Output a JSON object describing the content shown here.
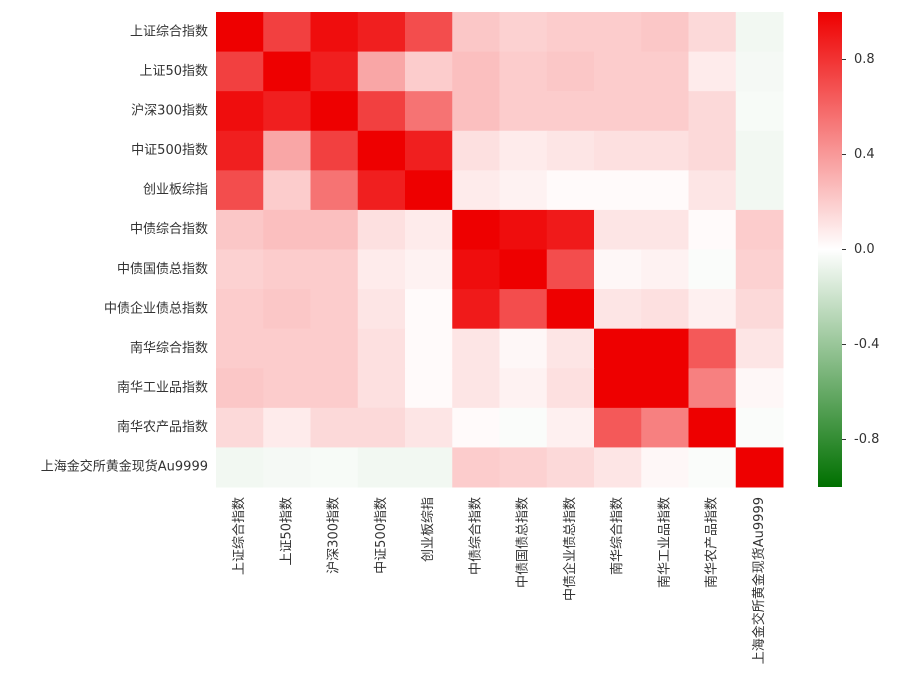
{
  "chart_data": {
    "type": "heatmap",
    "categories": [
      "上证综合指数",
      "上证50指数",
      "沪深300指数",
      "中证500指数",
      "创业板综指",
      "中债综合指数",
      "中债国债总指数",
      "中债企业债总指数",
      "南华综合指数",
      "南华工业品指数",
      "南华农产品指数",
      "上海金交所黄金现货Au9999"
    ],
    "values": [
      [
        1,
        0.75,
        0.95,
        0.88,
        0.7,
        0.22,
        0.18,
        0.2,
        0.2,
        0.22,
        0.15,
        -0.05
      ],
      [
        0.75,
        1,
        0.88,
        0.35,
        0.2,
        0.25,
        0.2,
        0.22,
        0.2,
        0.2,
        0.08,
        -0.04
      ],
      [
        0.95,
        0.88,
        1,
        0.75,
        0.55,
        0.25,
        0.2,
        0.2,
        0.2,
        0.2,
        0.15,
        -0.03
      ],
      [
        0.88,
        0.35,
        0.75,
        1,
        0.88,
        0.12,
        0.08,
        0.1,
        0.12,
        0.12,
        0.15,
        -0.05
      ],
      [
        0.7,
        0.2,
        0.55,
        0.88,
        1,
        0.08,
        0.05,
        0.02,
        0.02,
        0.02,
        0.1,
        -0.05
      ],
      [
        0.22,
        0.25,
        0.25,
        0.12,
        0.08,
        1,
        0.95,
        0.9,
        0.1,
        0.1,
        0.02,
        0.2
      ],
      [
        0.18,
        0.2,
        0.2,
        0.08,
        0.05,
        0.95,
        1,
        0.7,
        0.03,
        0.05,
        -0.02,
        0.18
      ],
      [
        0.2,
        0.22,
        0.2,
        0.1,
        0.02,
        0.9,
        0.7,
        1,
        0.1,
        0.12,
        0.06,
        0.15
      ],
      [
        0.2,
        0.2,
        0.2,
        0.12,
        0.02,
        0.1,
        0.03,
        0.1,
        1,
        1,
        0.65,
        0.1
      ],
      [
        0.22,
        0.2,
        0.2,
        0.12,
        0.02,
        0.1,
        0.05,
        0.12,
        1,
        1,
        0.5,
        0.03
      ],
      [
        0.15,
        0.08,
        0.15,
        0.15,
        0.1,
        0.02,
        -0.02,
        0.06,
        0.65,
        0.5,
        1,
        -0.02
      ],
      [
        -0.05,
        -0.04,
        -0.03,
        -0.05,
        -0.05,
        0.2,
        0.18,
        0.15,
        0.1,
        0.03,
        -0.02,
        1
      ]
    ],
    "zlim": [
      -1,
      1
    ],
    "colorbar_ticks": [
      -0.8,
      -0.4,
      {
        "value": 0,
        "label": "0.0"
      },
      0.4,
      0.8
    ],
    "colors": [
      "#007000",
      "#ffffff",
      "#ee0000"
    ]
  }
}
